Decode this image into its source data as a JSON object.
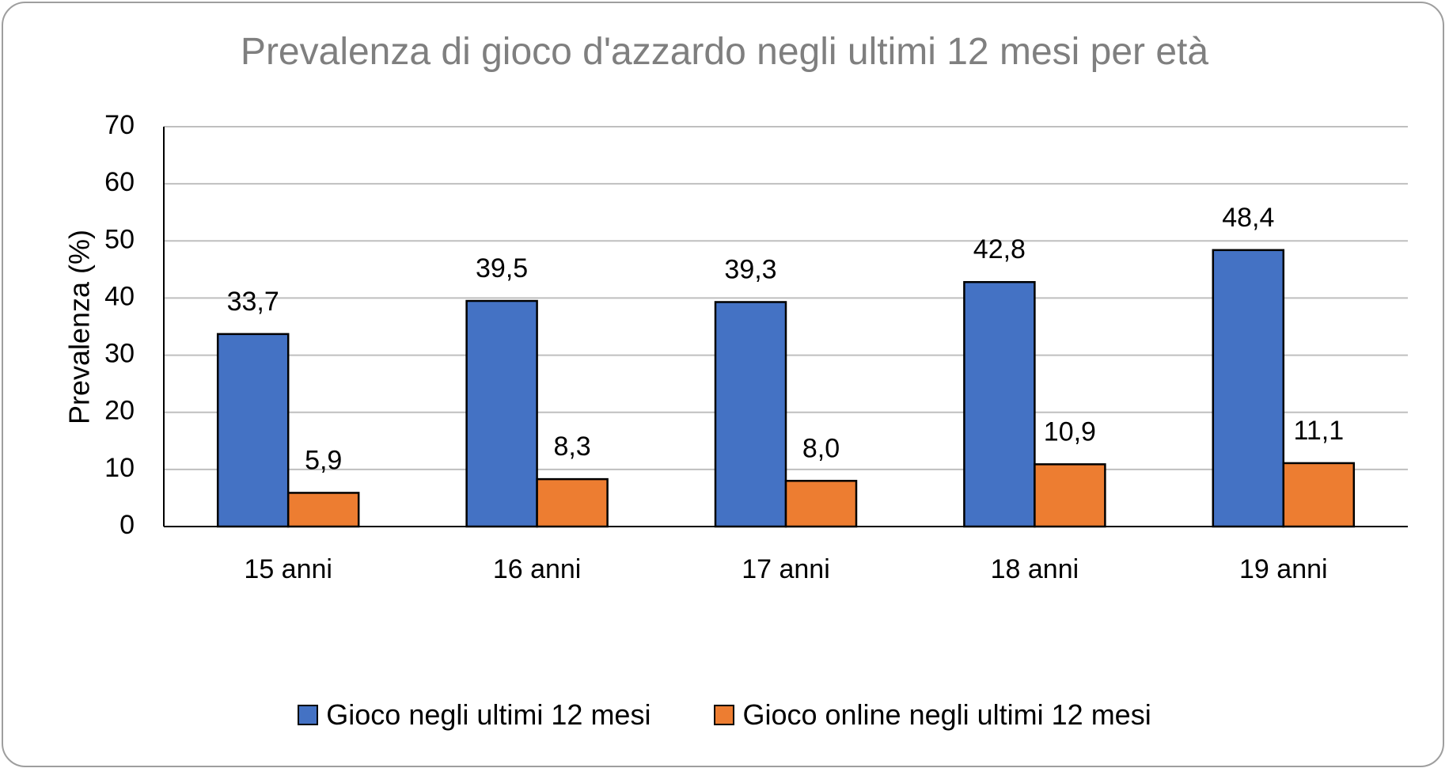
{
  "chart_data": {
    "type": "bar",
    "title": "Prevalenza di gioco d'azzardo negli ultimi 12 mesi per età",
    "xlabel": "",
    "ylabel": "Prevalenza (%)",
    "ylim": [
      0,
      70
    ],
    "yticks": [
      0,
      10,
      20,
      30,
      40,
      50,
      60,
      70
    ],
    "categories": [
      "15 anni",
      "16 anni",
      "17 anni",
      "18 anni",
      "19 anni"
    ],
    "series": [
      {
        "name": "Gioco negli ultimi 12 mesi",
        "color": "#4472c4",
        "values": [
          33.7,
          39.5,
          39.3,
          42.8,
          48.4
        ],
        "labels": [
          "33,7",
          "39,5",
          "39,3",
          "42,8",
          "48,4"
        ]
      },
      {
        "name": "Gioco online negli ultimi 12 mesi",
        "color": "#ed7d31",
        "values": [
          5.9,
          8.3,
          8.0,
          10.9,
          11.1
        ],
        "labels": [
          "5,9",
          "8,3",
          "8,0",
          "10,9",
          "11,1"
        ]
      }
    ],
    "grid": true,
    "legend_position": "bottom"
  }
}
